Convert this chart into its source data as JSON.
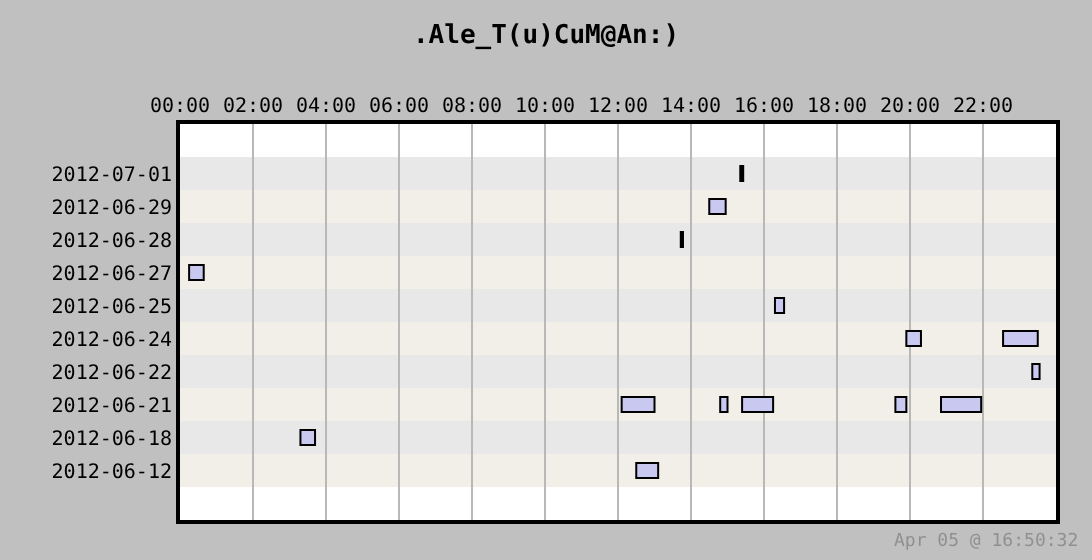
{
  "chart_data": {
    "type": "bar",
    "orientation": "horizontal",
    "title": ".Ale_T(u)CuM@An:)",
    "categories": [
      "2012-07-01",
      "2012-06-29",
      "2012-06-28",
      "2012-06-27",
      "2012-06-25",
      "2012-06-24",
      "2012-06-22",
      "2012-06-21",
      "2012-06-18",
      "2012-06-12"
    ],
    "series": [
      {
        "colors": [
          "#000000",
          "#c8c8f0",
          "#000000",
          "#c8c8f0",
          "#c8c8f0",
          "#c8c8f0",
          "#c8c8f0",
          "#c8c8f0",
          "#c8c8f0",
          "#c8c8f0"
        ],
        "base": [
          15.35,
          14.5,
          13.72,
          0.25,
          16.3,
          19.9,
          23.35,
          12.1,
          3.3,
          12.5
        ],
        "values": [
          0.08,
          0.45,
          0.06,
          0.4,
          0.25,
          0.4,
          0.2,
          0.9,
          0.4,
          0.6
        ]
      },
      {
        "color": "#c8c8f0",
        "base": [
          null,
          null,
          null,
          null,
          null,
          22.55,
          null,
          14.8,
          null,
          null
        ],
        "values": [
          null,
          null,
          null,
          null,
          null,
          0.95,
          null,
          0.2,
          null,
          null
        ]
      },
      {
        "color": "#c8c8f0",
        "base": [
          null,
          null,
          null,
          null,
          null,
          null,
          null,
          15.4,
          null,
          null
        ],
        "values": [
          null,
          null,
          null,
          null,
          null,
          null,
          null,
          0.85,
          null,
          null
        ]
      },
      {
        "color": "#c8c8f0",
        "base": [
          null,
          null,
          null,
          null,
          null,
          null,
          null,
          19.6,
          null,
          null
        ],
        "values": [
          null,
          null,
          null,
          null,
          null,
          null,
          null,
          0.3,
          null,
          null
        ]
      },
      {
        "color": "#c8c8f0",
        "base": [
          null,
          null,
          null,
          null,
          null,
          null,
          null,
          20.85,
          null,
          null
        ],
        "values": [
          null,
          null,
          null,
          null,
          null,
          null,
          null,
          1.1,
          null,
          null
        ]
      }
    ],
    "xlim": [
      0,
      24
    ],
    "xticks": [
      {
        "value": 0,
        "label": "00:00"
      },
      {
        "value": 2,
        "label": "02:00"
      },
      {
        "value": 4,
        "label": "04:00"
      },
      {
        "value": 6,
        "label": "06:00"
      },
      {
        "value": 8,
        "label": "08:00"
      },
      {
        "value": 10,
        "label": "10:00"
      },
      {
        "value": 12,
        "label": "12:00"
      },
      {
        "value": 14,
        "label": "14:00"
      },
      {
        "value": 16,
        "label": "16:00"
      },
      {
        "value": 18,
        "label": "18:00"
      },
      {
        "value": 20,
        "label": "20:00"
      },
      {
        "value": 22,
        "label": "22:00"
      }
    ],
    "grid": "x",
    "annotations": [
      "Apr 05 @ 16:50:32"
    ]
  }
}
